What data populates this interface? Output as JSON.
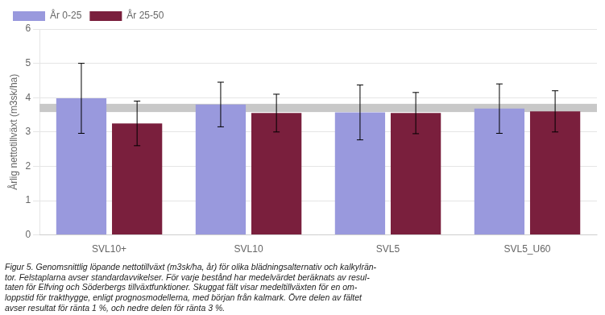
{
  "chart_data": {
    "type": "bar",
    "categories": [
      "SVL10+",
      "SVL10",
      "SVL5",
      "SVL5_U60"
    ],
    "series": [
      {
        "name": "År 0-25",
        "color": "#9999dd",
        "values": [
          3.98,
          3.8,
          3.57,
          3.68
        ],
        "errors": [
          1.02,
          0.65,
          0.8,
          0.72
        ]
      },
      {
        "name": "År 25-50",
        "color": "#7a1f3d",
        "values": [
          3.25,
          3.55,
          3.55,
          3.6
        ],
        "errors": [
          0.65,
          0.55,
          0.6,
          0.6
        ]
      }
    ],
    "band": {
      "ymin": 3.58,
      "ymax": 3.82,
      "color": "#c8c8c8"
    },
    "ylim": [
      0,
      6
    ],
    "yticks": [
      0,
      1,
      2,
      3,
      4,
      5,
      6
    ],
    "ylabel": "Årlig nettotillväxt (m3sk/ha)",
    "grid": true,
    "legend": "upper left",
    "caption": [
      "Figur 5. Genomsnittlig löpande nettotillväxt (m3sk/ha, år) för olika blädningsalternativ och kalkylrän-",
      "tor. Felstaplarna avser standardavvikelser. För varje bestånd har medelvärdet beräknats av resul-",
      "taten för Elfving och Söderbergs tillväxtfunktioner. Skuggat fält visar medeltillväxten för en om-",
      "loppstid för trakthygge, enligt prognosmodellerna, med början från kalmark. Övre delen av fältet",
      "avser resultat för ränta 1 %, och nedre delen för ränta 3 %."
    ]
  }
}
